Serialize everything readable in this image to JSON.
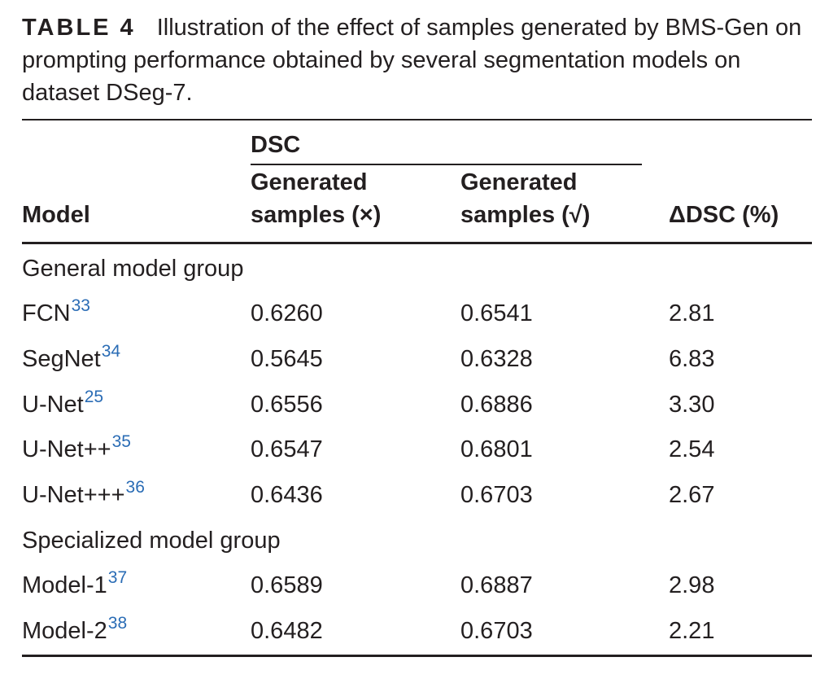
{
  "caption": {
    "label": "TABLE 4",
    "text": "Illustration of the effect of samples generated by BMS-Gen on prompting performance obtained by several segmentation models on dataset DSeg-7."
  },
  "header": {
    "model": "Model",
    "dsc": "DSC",
    "gen_x_line1": "Generated",
    "gen_x_line2": "samples (×)",
    "gen_check_line1": "Generated",
    "gen_check_line2": "samples (√)",
    "delta": "ΔDSC (%)"
  },
  "groups": [
    {
      "label": "General model group",
      "rows": [
        {
          "model": "FCN",
          "ref": "33",
          "dsc_x": "0.6260",
          "dsc_check": "0.6541",
          "delta": "2.81"
        },
        {
          "model": "SegNet",
          "ref": "34",
          "dsc_x": "0.5645",
          "dsc_check": "0.6328",
          "delta": "6.83"
        },
        {
          "model": "U-Net",
          "ref": "25",
          "dsc_x": "0.6556",
          "dsc_check": "0.6886",
          "delta": "3.30"
        },
        {
          "model": "U-Net++",
          "ref": "35",
          "dsc_x": "0.6547",
          "dsc_check": "0.6801",
          "delta": "2.54"
        },
        {
          "model": "U-Net+++",
          "ref": "36",
          "dsc_x": "0.6436",
          "dsc_check": "0.6703",
          "delta": "2.67"
        }
      ]
    },
    {
      "label": "Specialized model group",
      "rows": [
        {
          "model": "Model-1",
          "ref": "37",
          "dsc_x": "0.6589",
          "dsc_check": "0.6887",
          "delta": "2.98"
        },
        {
          "model": "Model-2",
          "ref": "38",
          "dsc_x": "0.6482",
          "dsc_check": "0.6703",
          "delta": "2.21"
        }
      ]
    }
  ]
}
